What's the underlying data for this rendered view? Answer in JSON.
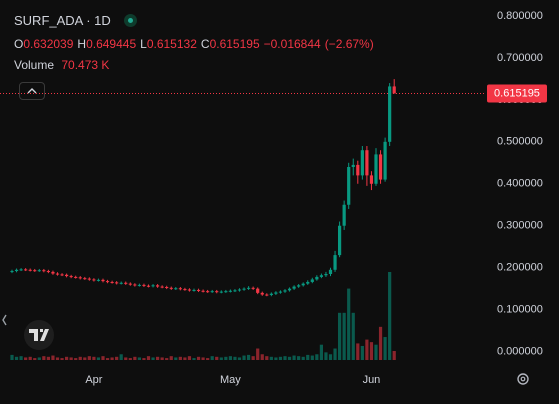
{
  "chart_data": {
    "type": "candlestick",
    "symbol": "SURF_ADA · 1D",
    "ohlc": [
      {
        "key": "O",
        "value": 0.632039,
        "label": "0.632039"
      },
      {
        "key": "H",
        "value": 0.649445,
        "label": "0.649445"
      },
      {
        "key": "L",
        "value": 0.615132,
        "label": "0.615132"
      },
      {
        "key": "C",
        "value": 0.615195,
        "label": "0.615195"
      }
    ],
    "change": {
      "value": -0.016844,
      "label": "−0.016844"
    },
    "change_pct": {
      "value": -2.67,
      "label": "(−2.67%)"
    },
    "volume_title": "Volume",
    "volume_last": {
      "value": 70473,
      "label": "70.473 K"
    },
    "last_price": {
      "value": 0.615195,
      "label": "0.615195"
    },
    "up_color": "#089981",
    "down_color": "#f23645",
    "ylim": [
      -0.02,
      0.838
    ],
    "yticks": [
      {
        "value": 0,
        "label": "0.000000"
      },
      {
        "value": 0.1,
        "label": "0.100000"
      },
      {
        "value": 0.2,
        "label": "0.200000"
      },
      {
        "value": 0.3,
        "label": "0.300000"
      },
      {
        "value": 0.4,
        "label": "0.400000"
      },
      {
        "value": 0.5,
        "label": "0.500000"
      },
      {
        "value": 0.6,
        "label": "0.600000"
      },
      {
        "value": 0.7,
        "label": "0.700000"
      },
      {
        "value": 0.8,
        "label": "0.800000"
      }
    ],
    "grid": false,
    "categories": [
      null,
      null,
      null,
      null,
      null,
      null,
      null,
      null,
      null,
      null,
      null,
      null,
      null,
      null,
      null,
      null,
      null,
      null,
      "Apr",
      null,
      null,
      null,
      null,
      null,
      null,
      null,
      null,
      null,
      null,
      null,
      null,
      null,
      null,
      null,
      null,
      null,
      null,
      null,
      null,
      null,
      null,
      null,
      null,
      null,
      null,
      null,
      null,
      null,
      "May",
      null,
      null,
      null,
      null,
      null,
      null,
      null,
      null,
      null,
      null,
      null,
      null,
      null,
      null,
      null,
      null,
      null,
      null,
      null,
      null,
      null,
      null,
      null,
      null,
      null,
      null,
      null,
      null,
      null,
      null,
      "Jun",
      null,
      null,
      null,
      null,
      null
    ],
    "open": [
      0.19,
      0.192,
      0.195,
      0.196,
      0.195,
      0.194,
      0.193,
      0.194,
      0.192,
      0.19,
      0.186,
      0.184,
      0.183,
      0.18,
      0.178,
      0.177,
      0.175,
      0.174,
      0.172,
      0.17,
      0.171,
      0.168,
      0.166,
      0.165,
      0.163,
      0.164,
      0.162,
      0.16,
      0.158,
      0.159,
      0.157,
      0.156,
      0.158,
      0.155,
      0.154,
      0.152,
      0.15,
      0.151,
      0.149,
      0.148,
      0.146,
      0.147,
      0.145,
      0.144,
      0.143,
      0.144,
      0.142,
      0.143,
      0.144,
      0.145,
      0.146,
      0.148,
      0.15,
      0.152,
      0.15,
      0.14,
      0.136,
      0.135,
      0.138,
      0.141,
      0.143,
      0.146,
      0.15,
      0.155,
      0.158,
      0.162,
      0.166,
      0.172,
      0.178,
      0.182,
      0.185,
      0.195,
      0.23,
      0.3,
      0.35,
      0.44,
      0.445,
      0.42,
      0.48,
      0.42,
      0.4,
      0.47,
      0.41,
      0.5,
      0.632039
    ],
    "high": [
      0.195,
      0.198,
      0.199,
      0.199,
      0.198,
      0.197,
      0.197,
      0.197,
      0.195,
      0.193,
      0.189,
      0.187,
      0.186,
      0.183,
      0.181,
      0.18,
      0.178,
      0.177,
      0.175,
      0.174,
      0.174,
      0.171,
      0.169,
      0.168,
      0.167,
      0.167,
      0.165,
      0.163,
      0.162,
      0.162,
      0.16,
      0.161,
      0.161,
      0.158,
      0.157,
      0.155,
      0.154,
      0.154,
      0.152,
      0.151,
      0.15,
      0.15,
      0.148,
      0.147,
      0.147,
      0.147,
      0.146,
      0.147,
      0.148,
      0.149,
      0.151,
      0.153,
      0.156,
      0.155,
      0.153,
      0.143,
      0.139,
      0.141,
      0.144,
      0.146,
      0.149,
      0.153,
      0.158,
      0.161,
      0.165,
      0.17,
      0.176,
      0.182,
      0.186,
      0.19,
      0.2,
      0.24,
      0.31,
      0.36,
      0.45,
      0.46,
      0.455,
      0.49,
      0.49,
      0.43,
      0.485,
      0.48,
      0.51,
      0.64,
      0.649445
    ],
    "low": [
      0.187,
      0.189,
      0.192,
      0.192,
      0.191,
      0.19,
      0.19,
      0.189,
      0.187,
      0.183,
      0.181,
      0.18,
      0.177,
      0.175,
      0.174,
      0.172,
      0.171,
      0.169,
      0.167,
      0.167,
      0.165,
      0.163,
      0.162,
      0.16,
      0.16,
      0.159,
      0.157,
      0.155,
      0.155,
      0.154,
      0.153,
      0.153,
      0.152,
      0.151,
      0.149,
      0.147,
      0.147,
      0.146,
      0.145,
      0.143,
      0.143,
      0.142,
      0.141,
      0.14,
      0.14,
      0.139,
      0.139,
      0.14,
      0.141,
      0.142,
      0.143,
      0.145,
      0.147,
      0.147,
      0.137,
      0.133,
      0.132,
      0.132,
      0.135,
      0.138,
      0.14,
      0.143,
      0.147,
      0.152,
      0.155,
      0.159,
      0.163,
      0.169,
      0.175,
      0.178,
      0.18,
      0.19,
      0.225,
      0.29,
      0.34,
      0.42,
      0.4,
      0.41,
      0.395,
      0.385,
      0.395,
      0.4,
      0.405,
      0.49,
      0.615132
    ],
    "close": [
      0.192,
      0.195,
      0.196,
      0.195,
      0.194,
      0.193,
      0.194,
      0.192,
      0.19,
      0.186,
      0.184,
      0.183,
      0.18,
      0.178,
      0.177,
      0.175,
      0.174,
      0.172,
      0.17,
      0.171,
      0.168,
      0.166,
      0.165,
      0.163,
      0.164,
      0.162,
      0.16,
      0.158,
      0.159,
      0.157,
      0.156,
      0.158,
      0.155,
      0.154,
      0.152,
      0.15,
      0.151,
      0.149,
      0.148,
      0.146,
      0.147,
      0.145,
      0.144,
      0.143,
      0.144,
      0.142,
      0.143,
      0.144,
      0.145,
      0.146,
      0.148,
      0.15,
      0.152,
      0.15,
      0.14,
      0.136,
      0.135,
      0.138,
      0.141,
      0.143,
      0.146,
      0.15,
      0.155,
      0.158,
      0.162,
      0.166,
      0.172,
      0.178,
      0.182,
      0.185,
      0.195,
      0.23,
      0.3,
      0.35,
      0.44,
      0.445,
      0.42,
      0.48,
      0.42,
      0.4,
      0.47,
      0.41,
      0.5,
      0.632039,
      0.615195
    ],
    "volume": [
      40000,
      25000,
      30000,
      20000,
      25000,
      15000,
      20000,
      30000,
      25000,
      35000,
      20000,
      15000,
      25000,
      20000,
      15000,
      25000,
      20000,
      30000,
      25000,
      20000,
      30000,
      15000,
      20000,
      25000,
      45000,
      20000,
      15000,
      25000,
      20000,
      15000,
      30000,
      20000,
      25000,
      20000,
      15000,
      30000,
      20000,
      25000,
      20000,
      30000,
      15000,
      25000,
      20000,
      15000,
      30000,
      25000,
      20000,
      25000,
      30000,
      25000,
      20000,
      35000,
      40000,
      30000,
      90000,
      45000,
      30000,
      25000,
      20000,
      25000,
      30000,
      25000,
      35000,
      30000,
      25000,
      40000,
      35000,
      45000,
      120000,
      60000,
      45000,
      90000,
      370000,
      370000,
      560000,
      370000,
      130000,
      110000,
      160000,
      140000,
      120000,
      260000,
      180000,
      690000,
      70473
    ]
  }
}
